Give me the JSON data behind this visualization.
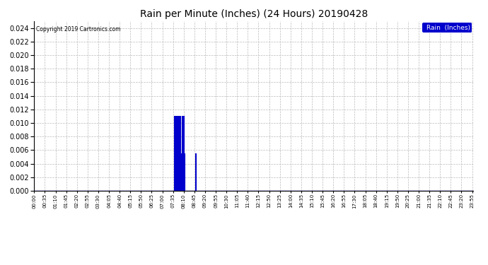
{
  "title": "Rain per Minute (Inches) (24 Hours) 20190428",
  "copyright_text": "Copyright 2019 Cartronics.com",
  "legend_label": "Rain  (Inches)",
  "legend_bg": "#0000CC",
  "legend_fg": "#FFFFFF",
  "bar_color": "#0000CC",
  "baseline_color": "#0000AA",
  "background_color": "#FFFFFF",
  "plot_bg_color": "#FFFFFF",
  "grid_color": "#BBBBBB",
  "ylim": [
    0.0,
    0.025
  ],
  "yticks": [
    0.0,
    0.002,
    0.004,
    0.006,
    0.008,
    0.01,
    0.012,
    0.014,
    0.016,
    0.018,
    0.02,
    0.022,
    0.024
  ],
  "total_minutes": 1440,
  "xtick_interval": 35,
  "rain_events": [
    {
      "minute": 460,
      "value": 0.011
    },
    {
      "minute": 462,
      "value": 0.011
    },
    {
      "minute": 464,
      "value": 0.011
    },
    {
      "minute": 466,
      "value": 0.0055
    },
    {
      "minute": 468,
      "value": 0.0055
    },
    {
      "minute": 470,
      "value": 0.011
    },
    {
      "minute": 472,
      "value": 0.011
    },
    {
      "minute": 474,
      "value": 0.0055
    },
    {
      "minute": 476,
      "value": 0.011
    },
    {
      "minute": 478,
      "value": 0.011
    },
    {
      "minute": 480,
      "value": 0.011
    },
    {
      "minute": 482,
      "value": 0.0055
    },
    {
      "minute": 484,
      "value": 0.0055
    },
    {
      "minute": 486,
      "value": 0.011
    },
    {
      "minute": 488,
      "value": 0.011
    },
    {
      "minute": 490,
      "value": 0.011
    },
    {
      "minute": 492,
      "value": 0.0055
    },
    {
      "minute": 530,
      "value": 0.0055
    }
  ]
}
